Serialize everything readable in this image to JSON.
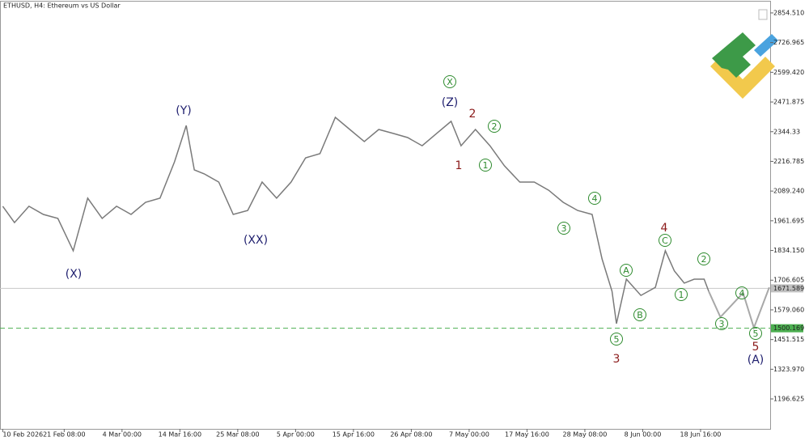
{
  "chart_data": {
    "type": "line",
    "title": "ETHUSD, H4:  Ethereum vs US Dollar",
    "color": "#7a7a7a",
    "x": [
      0,
      13,
      29,
      45,
      61,
      78,
      94,
      110,
      126,
      142,
      158,
      174,
      190,
      203,
      212,
      223,
      239,
      255,
      271,
      287,
      303,
      319,
      335,
      351,
      368,
      384,
      400,
      416,
      432,
      448,
      464,
      480,
      496,
      507,
      523,
      539,
      555,
      572,
      588,
      604,
      620,
      636,
      652,
      663,
      674,
      679,
      690,
      706,
      722,
      733,
      743,
      754,
      765,
      776,
      781
    ],
    "values": [
      2024,
      1954,
      2024,
      1989,
      1972,
      1833,
      2059,
      1972,
      2024,
      1989,
      2041,
      2059,
      2215,
      2371,
      2180,
      2163,
      2128,
      1989,
      2006,
      2128,
      2059,
      2128,
      2232,
      2250,
      2406,
      2354,
      2302,
      2354,
      2337,
      2319,
      2284,
      2337,
      2389,
      2284,
      2354,
      2284,
      2198,
      2128,
      2128,
      2093,
      2041,
      2006,
      1989,
      1798,
      1659,
      1520,
      1711,
      1641,
      1676,
      1833,
      1746,
      1694,
      1711,
      1711,
      1659
    ],
    "forecast": {
      "color": "#a8a8a8",
      "x": [
        781,
        794,
        819,
        831,
        848
      ],
      "values": [
        1659,
        1548,
        1652,
        1502,
        1676
      ]
    },
    "price_lines": [
      {
        "value": 1671.589,
        "color": "#c8c8c8",
        "dashed": false
      },
      {
        "value": 1500.169,
        "color": "#4caf50",
        "dashed": true
      }
    ],
    "xlim": [
      -3,
      849
    ],
    "xticks": [
      {
        "value": 0,
        "label": "10 Feb 2026"
      },
      {
        "value": 68,
        "label": "21 Feb 08:00"
      },
      {
        "value": 132,
        "label": "4 Mar 00:00"
      },
      {
        "value": 196,
        "label": "14 Mar 16:00"
      },
      {
        "value": 260,
        "label": "25 Mar 08:00"
      },
      {
        "value": 324,
        "label": "5 Apr 00:00"
      },
      {
        "value": 388,
        "label": "15 Apr 16:00"
      },
      {
        "value": 452,
        "label": "26 Apr 08:00"
      },
      {
        "value": 516,
        "label": "7 May 00:00"
      },
      {
        "value": 580,
        "label": "17 May 16:00"
      },
      {
        "value": 644,
        "label": "28 May 08:00"
      },
      {
        "value": 708,
        "label": "8 Jun 00:00"
      },
      {
        "value": 772,
        "label": "18 Jun 16:00"
      }
    ],
    "ylim": [
      1068,
      2903
    ],
    "yticks": [
      {
        "value": 2854.51,
        "label": "2854.510"
      },
      2726.965,
      {
        "value": 2599.42,
        "label": "2599.420"
      },
      2471.875,
      2344.33,
      2216.785,
      {
        "value": 2089.24,
        "label": "2089.240"
      },
      1961.695,
      {
        "value": 1834.15,
        "label": "1834.150"
      },
      1706.605,
      {
        "value": 1579.06,
        "label": "1579.060"
      },
      1451.515,
      {
        "value": 1323.97,
        "label": "1323.970"
      },
      1196.625
    ],
    "annotations": [
      "(X)",
      "(Y)",
      "(XX)",
      "(Z)",
      "X",
      "2",
      "1",
      "2",
      "1",
      "4",
      "3",
      "4",
      "C",
      "A",
      "B",
      "5",
      "3",
      "1",
      "2",
      "4",
      "3",
      "5",
      "5",
      "(A)"
    ]
  }
}
